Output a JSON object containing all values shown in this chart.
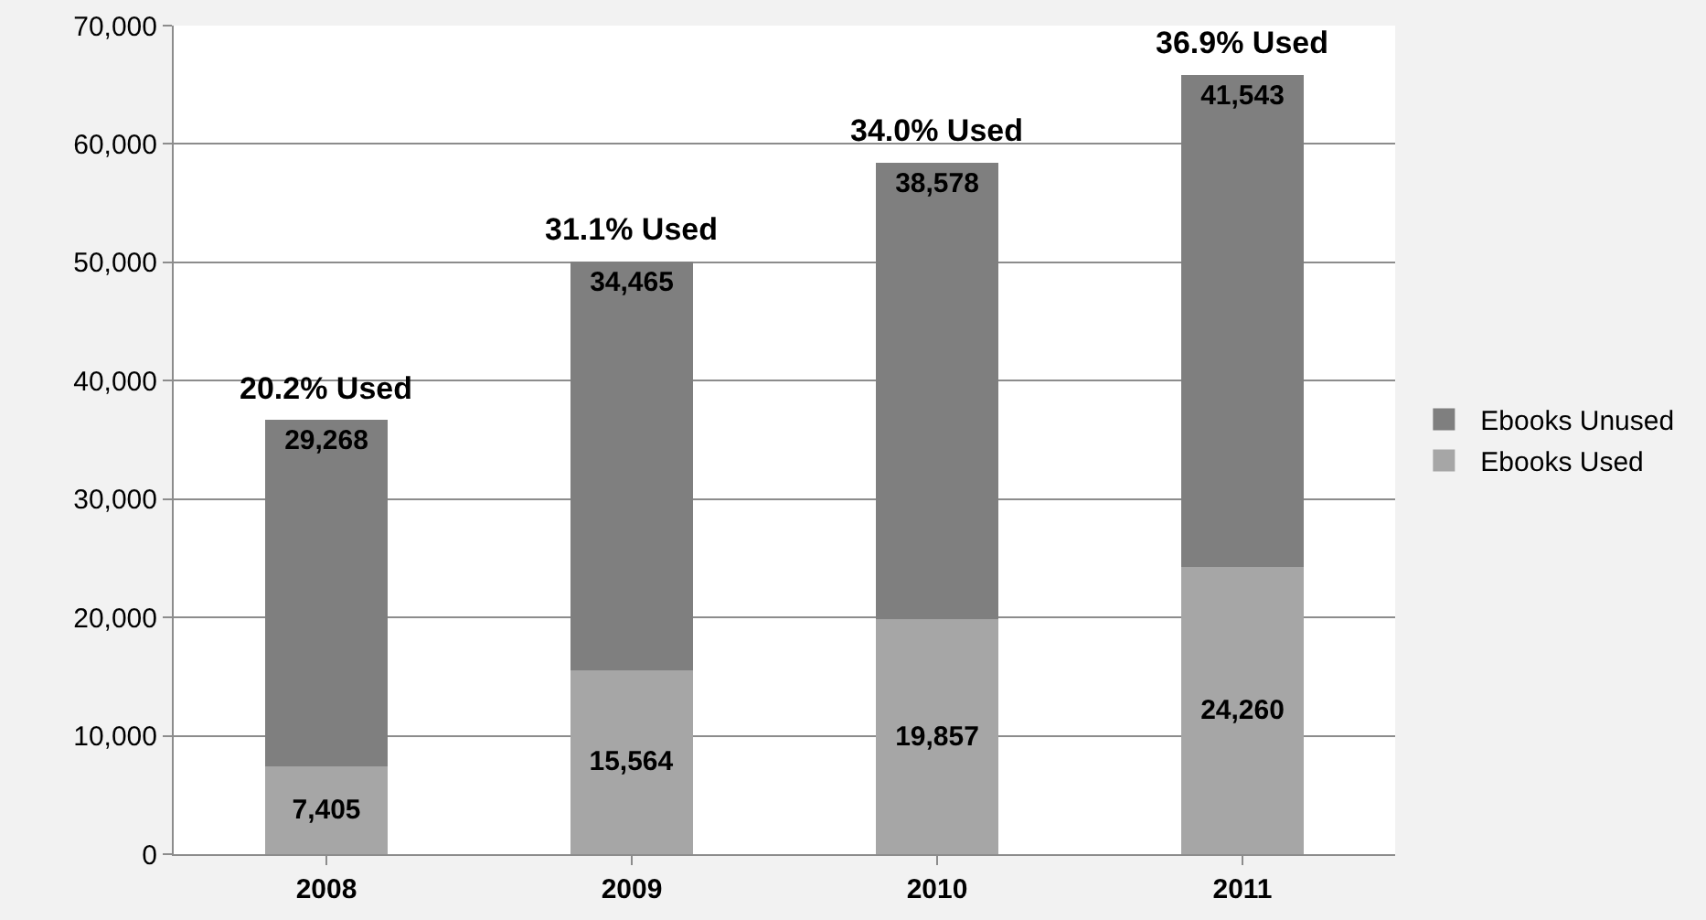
{
  "chart_data": {
    "type": "bar",
    "stacked": true,
    "categories": [
      "2008",
      "2009",
      "2010",
      "2011"
    ],
    "series": [
      {
        "name": "Ebooks Used",
        "color": "#a6a6a6",
        "values": [
          7405,
          15564,
          19857,
          24260
        ],
        "value_labels": [
          "7,405",
          "15,564",
          "19,857",
          "24,260"
        ]
      },
      {
        "name": "Ebooks Unused",
        "color": "#7f7f7f",
        "values": [
          29268,
          34465,
          38578,
          41543
        ],
        "value_labels": [
          "29,268",
          "34,465",
          "38,578",
          "41,543"
        ]
      }
    ],
    "annotations": [
      {
        "text": "20.2% Used",
        "x": "2008",
        "y": 36673
      },
      {
        "text": "31.1% Used",
        "x": "2009",
        "y": 50029
      },
      {
        "text": "34.0% Used",
        "x": "2010",
        "y": 58435
      },
      {
        "text": "36.9% Used",
        "x": "2011",
        "y": 65803
      }
    ],
    "ylim": [
      0,
      70000
    ],
    "yticks": [
      {
        "value": 0,
        "label": "0"
      },
      {
        "value": 10000,
        "label": "10,000"
      },
      {
        "value": 20000,
        "label": "20,000"
      },
      {
        "value": 30000,
        "label": "30,000"
      },
      {
        "value": 40000,
        "label": "40,000"
      },
      {
        "value": 50000,
        "label": "50,000"
      },
      {
        "value": 60000,
        "label": "60,000"
      },
      {
        "value": 70000,
        "label": "70,000"
      }
    ],
    "grid": "y",
    "legend": "right"
  }
}
